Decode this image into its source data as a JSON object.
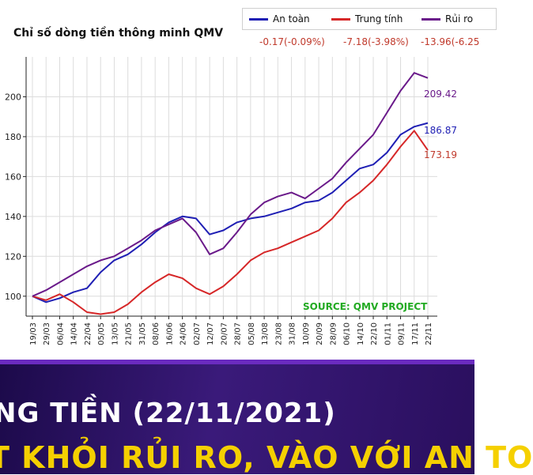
{
  "chart_data": {
    "type": "line",
    "title": "Chỉ số dòng tiền thông minh QMV",
    "x": [
      "19/03",
      "29/03",
      "06/04",
      "14/04",
      "22/04",
      "05/05",
      "13/05",
      "21/05",
      "31/05",
      "08/06",
      "16/06",
      "24/06",
      "02/07",
      "12/07",
      "20/07",
      "28/07",
      "05/08",
      "13/08",
      "23/08",
      "31/08",
      "10/09",
      "20/09",
      "28/09",
      "06/10",
      "14/10",
      "22/10",
      "01/11",
      "09/11",
      "17/11",
      "22/11"
    ],
    "x_tick_labels": [
      "19/03",
      "29/03",
      "06/04",
      "14/04",
      "22/04",
      "05/05",
      "13/05",
      "21/05",
      "31/05",
      "08/06",
      "16/06",
      "24/06",
      "02/07",
      "12/07",
      "20/07",
      "28/07",
      "05/08",
      "13/08",
      "23/08",
      "31/08",
      "10/09",
      "20/09",
      "28/09",
      "06/10",
      "14/10",
      "22/10",
      "01/11",
      "09/11",
      "17/11",
      "22/11"
    ],
    "ylim": [
      90,
      220
    ],
    "y_ticks": [
      100,
      120,
      140,
      160,
      180,
      200
    ],
    "grid": true,
    "legend_position": "top-right",
    "series": [
      {
        "name": "An toàn",
        "color": "#1f1fb4",
        "end_label": "186.87",
        "values": [
          100,
          97,
          99,
          102,
          104,
          112,
          118,
          121,
          126,
          132,
          137,
          140,
          139,
          131,
          133,
          137,
          139,
          140,
          142,
          144,
          147,
          148,
          152,
          158,
          164,
          166,
          172,
          181,
          185,
          186.87
        ]
      },
      {
        "name": "Trung tính",
        "color": "#d62728",
        "end_label": "173.19",
        "values": [
          100,
          98,
          101,
          97,
          92,
          91,
          92,
          96,
          102,
          107,
          111,
          109,
          104,
          101,
          105,
          111,
          118,
          122,
          124,
          127,
          130,
          133,
          139,
          147,
          152,
          158,
          166,
          175,
          183,
          173.19
        ]
      },
      {
        "name": "Rủi ro",
        "color": "#6a1a8a",
        "end_label": "209.42",
        "values": [
          100,
          103,
          107,
          111,
          115,
          118,
          120,
          124,
          128,
          133,
          136,
          139,
          132,
          121,
          124,
          132,
          141,
          147,
          150,
          152,
          149,
          154,
          159,
          167,
          174,
          181,
          192,
          203,
          212,
          209.42
        ]
      }
    ],
    "changes": [
      "-0.17(-0.09%)",
      "-7.18(-3.98%)",
      "-13.96(-6.25"
    ]
  },
  "source_label": "SOURCE: QMV PROJECT",
  "banner": {
    "line1": "NG TIỀN (22/11/2021)",
    "line2": "T KHỎI RỦI RO, VÀO VỚI AN TO"
  }
}
